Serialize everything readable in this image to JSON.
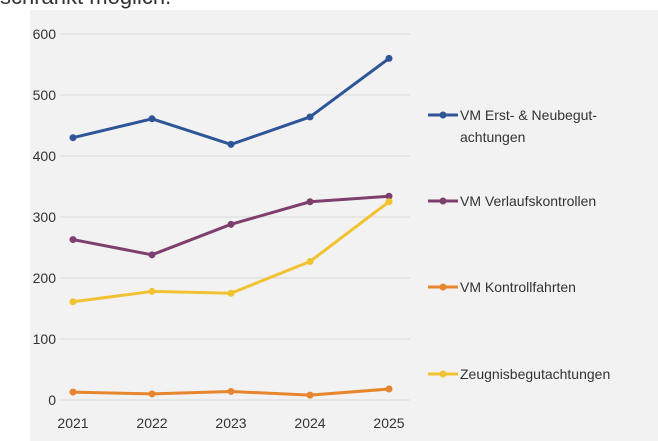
{
  "header_text": "schränkt möglich.",
  "chart_data": {
    "type": "line",
    "x": [
      2021,
      2022,
      2023,
      2024,
      2025
    ],
    "xticks": [
      2021,
      2022,
      2023,
      2024,
      2025
    ],
    "ylim": [
      0,
      600
    ],
    "yticks": [
      0,
      100,
      200,
      300,
      400,
      500,
      600
    ],
    "grid": true,
    "legend": "right",
    "series": [
      {
        "name": "VM Erst- & Neubegut­achtungen",
        "color": "#2e5597",
        "values": [
          430,
          461,
          419,
          464,
          560
        ]
      },
      {
        "name": "VM Verlaufskontrollen",
        "color": "#7f3f6e",
        "values": [
          263,
          238,
          288,
          325,
          334
        ]
      },
      {
        "name": "VM Kontrollfahrten",
        "color": "#e8862e",
        "values": [
          13,
          10,
          14,
          8,
          18
        ]
      },
      {
        "name": "Zeugnisbegutachtungen",
        "color": "#f1c232",
        "values": [
          161,
          178,
          175,
          227,
          325
        ]
      }
    ]
  }
}
